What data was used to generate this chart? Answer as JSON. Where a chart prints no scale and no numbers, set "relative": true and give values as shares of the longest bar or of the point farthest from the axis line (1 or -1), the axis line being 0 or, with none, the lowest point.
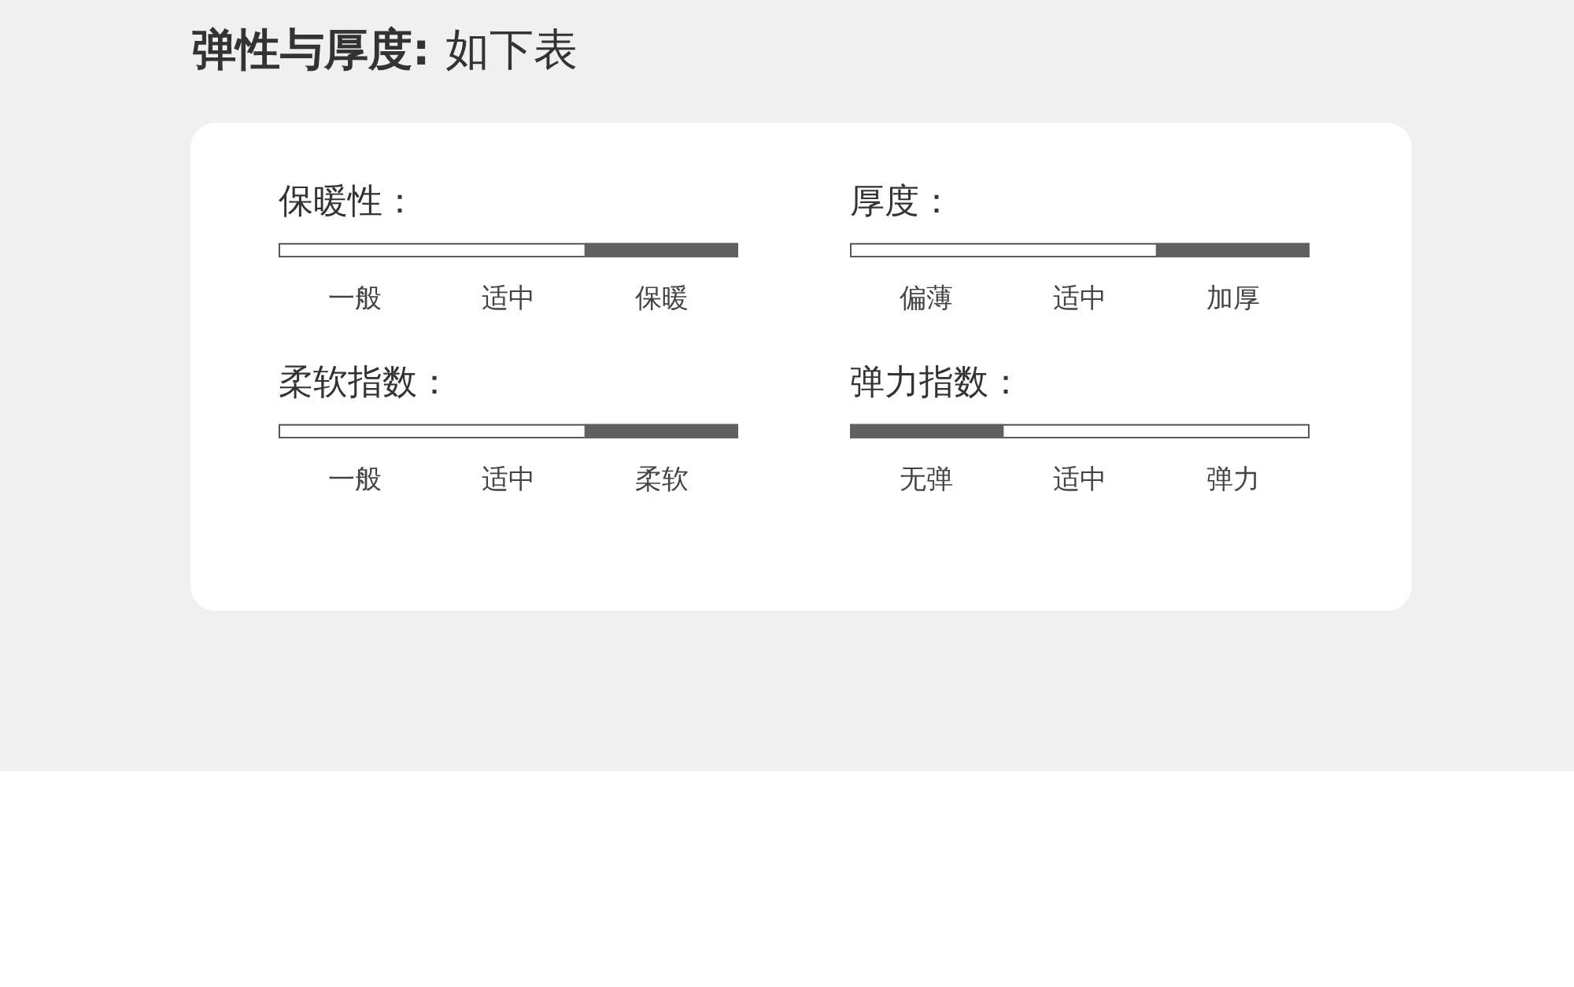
{
  "chart_data": [
    {
      "type": "other",
      "title": "弹性与厚度:",
      "subtitle": "如下表"
    },
    {
      "type": "bar",
      "title": "保暖性：",
      "categories": [
        "一般",
        "适中",
        "保暖"
      ],
      "values": [
        0,
        0,
        1
      ],
      "relative": true,
      "color": "#606060"
    },
    {
      "type": "bar",
      "title": "厚度：",
      "categories": [
        "偏薄",
        "适中",
        "加厚"
      ],
      "values": [
        0,
        0,
        1
      ],
      "relative": true,
      "color": "#606060"
    },
    {
      "type": "bar",
      "title": "柔软指数：",
      "categories": [
        "一般",
        "适中",
        "柔软"
      ],
      "values": [
        0,
        0,
        1
      ],
      "relative": true,
      "color": "#606060"
    },
    {
      "type": "bar",
      "title": "弹力指数：",
      "categories": [
        "无弹",
        "适中",
        "弹力"
      ],
      "values": [
        1,
        0,
        0
      ],
      "relative": true,
      "color": "#606060"
    }
  ]
}
